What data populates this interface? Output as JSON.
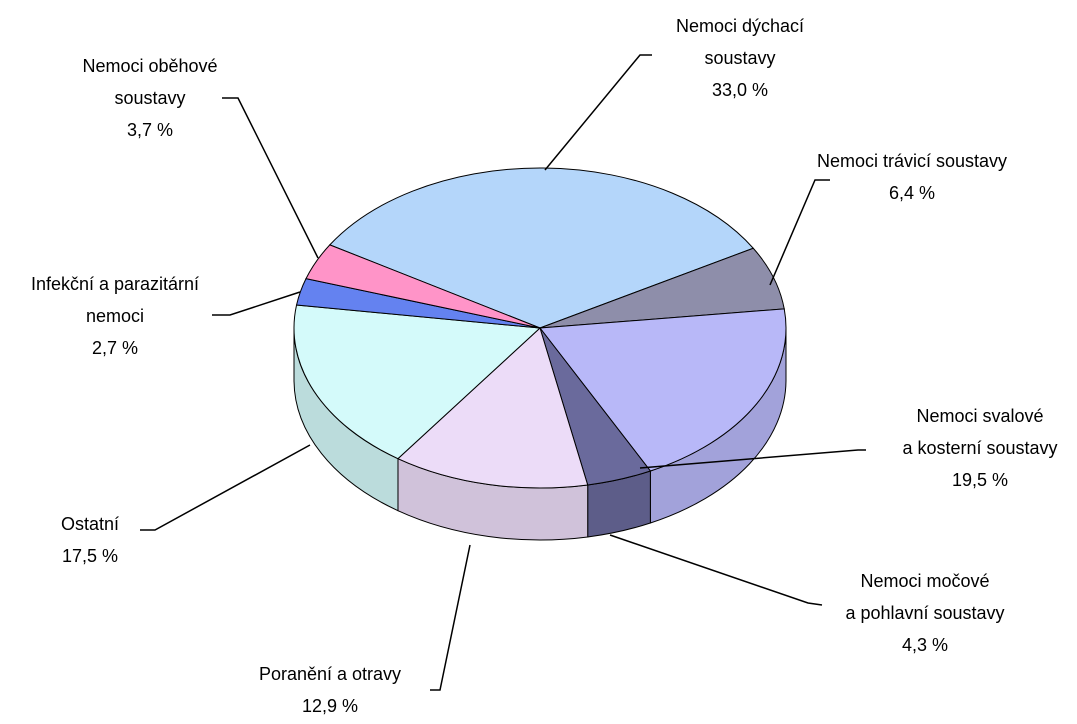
{
  "chart_data": {
    "type": "pie",
    "categories": [
      "Nemoci dýchací\nsoustavy",
      "Nemoci trávicí soustavy",
      "Nemoci svalové\na kosterní soustavy",
      "Nemoci močové\na pohlavní soustavy",
      "Poranění a otravy",
      "Ostatní",
      "Infekční a parazitární\nnemoci",
      "Nemoci oběhové\nsoustavy"
    ],
    "values": [
      33.0,
      6.4,
      19.5,
      4.3,
      12.9,
      17.5,
      2.7,
      3.7
    ],
    "value_labels": [
      "33,0 %",
      "6,4 %",
      "19,5 %",
      "4,3 %",
      "12,9 %",
      "17,5 %",
      "2,7 %",
      "3,7 %"
    ],
    "colors": [
      "#b4d6fa",
      "#8e8eaa",
      "#b8b8f8",
      "#6a6a9c",
      "#ecdcf8",
      "#d4fafa",
      "#6482f0",
      "#ff94c8"
    ]
  }
}
